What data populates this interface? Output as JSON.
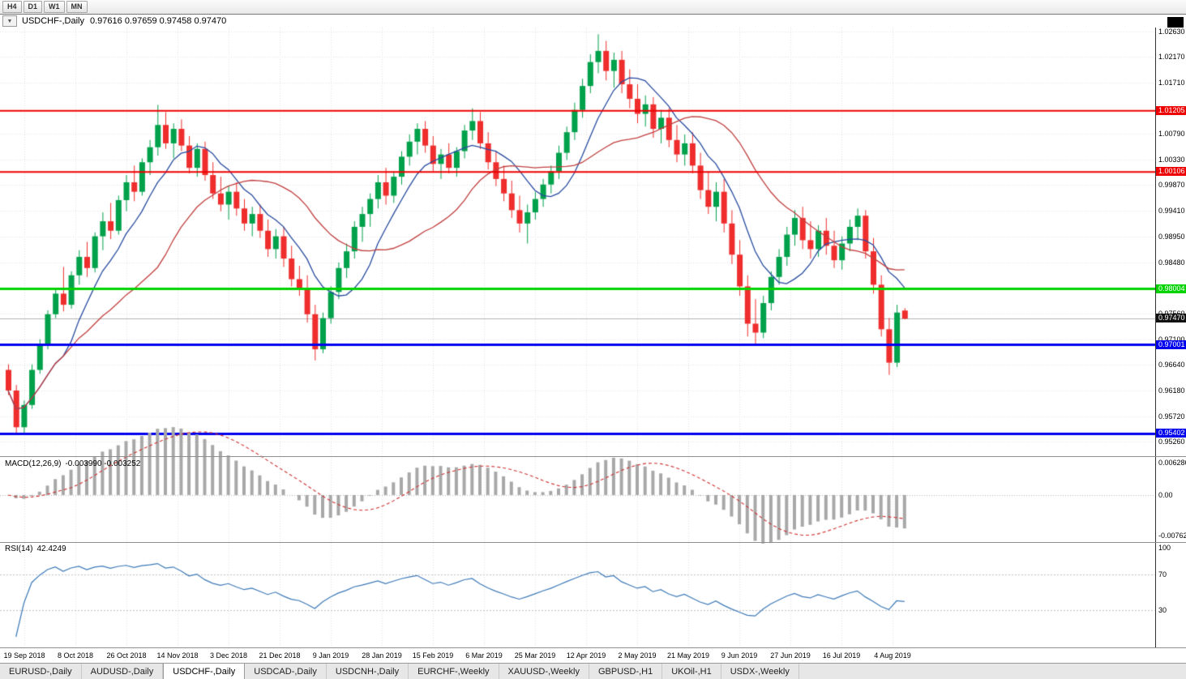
{
  "toolbar": {
    "periods": [
      "H4",
      "D1",
      "W1",
      "MN"
    ]
  },
  "header": {
    "symbol": "USDCHF-,Daily",
    "ohlc": "0.97616 0.97659 0.97458 0.97470"
  },
  "chart_data": {
    "type": "candlestick",
    "symbol": "USDCHF",
    "period": "Daily",
    "ylim": [
      0.95,
      1.027
    ],
    "price_axis_ticks": [
      1.0263,
      1.0217,
      1.0171,
      1.0079,
      1.0033,
      0.9987,
      0.9941,
      0.9895,
      0.9848,
      0.9756,
      0.971,
      0.9664,
      0.9618,
      0.9572,
      0.9526
    ],
    "levels": [
      {
        "name": "resistance-1",
        "price": 1.01205,
        "color": "#ee0000",
        "width": 2
      },
      {
        "name": "resistance-2",
        "price": 1.00106,
        "color": "#ee0000",
        "width": 2
      },
      {
        "name": "pivot-green",
        "price": 0.98004,
        "color": "#00d300",
        "width": 3
      },
      {
        "name": "support-1",
        "price": 0.97001,
        "color": "#0000ee",
        "width": 3
      },
      {
        "name": "support-2",
        "price": 0.95402,
        "color": "#0000ee",
        "width": 3
      }
    ],
    "current_price": 0.9747,
    "date_ticks": [
      "19 Sep 2018",
      "8 Oct 2018",
      "26 Oct 2018",
      "14 Nov 2018",
      "3 Dec 2018",
      "21 Dec 2018",
      "9 Jan 2019",
      "28 Jan 2019",
      "15 Feb 2019",
      "6 Mar 2019",
      "25 Mar 2019",
      "12 Apr 2019",
      "2 May 2019",
      "21 May 2019",
      "9 Jun 2019",
      "27 Jun 2019",
      "16 Jul 2019",
      "4 Aug 2019"
    ],
    "candles": [
      [
        0.9655,
        0.9665,
        0.961,
        0.9618
      ],
      [
        0.9618,
        0.9628,
        0.954,
        0.9552
      ],
      [
        0.9552,
        0.96,
        0.9541,
        0.9592
      ],
      [
        0.9592,
        0.9665,
        0.9585,
        0.9655
      ],
      [
        0.9655,
        0.971,
        0.9648,
        0.97
      ],
      [
        0.97,
        0.9762,
        0.9692,
        0.9755
      ],
      [
        0.9755,
        0.98,
        0.9748,
        0.9792
      ],
      [
        0.9792,
        0.984,
        0.976,
        0.9772
      ],
      [
        0.9772,
        0.9832,
        0.9765,
        0.9825
      ],
      [
        0.9825,
        0.987,
        0.9808,
        0.9858
      ],
      [
        0.9858,
        0.9885,
        0.9822,
        0.9838
      ],
      [
        0.9838,
        0.9902,
        0.983,
        0.9895
      ],
      [
        0.9895,
        0.9938,
        0.987,
        0.9922
      ],
      [
        0.9922,
        0.9955,
        0.989,
        0.9905
      ],
      [
        0.9905,
        0.9968,
        0.9898,
        0.996
      ],
      [
        0.996,
        1.0005,
        0.994,
        0.9992
      ],
      [
        0.9992,
        1.0022,
        0.9958,
        0.9975
      ],
      [
        0.9975,
        1.0035,
        0.9968,
        1.0028
      ],
      [
        1.0028,
        1.0068,
        1.0005,
        1.0055
      ],
      [
        1.0055,
        1.0131,
        1.004,
        1.0095
      ],
      [
        1.0095,
        1.0118,
        1.0052,
        1.0062
      ],
      [
        1.0062,
        1.0098,
        1.0035,
        1.0088
      ],
      [
        1.0088,
        1.0105,
        1.0048,
        1.0058
      ],
      [
        1.0058,
        1.0075,
        1.0008,
        1.0018
      ],
      [
        1.0018,
        1.0062,
        1.0002,
        1.0052
      ],
      [
        1.0052,
        1.0065,
        0.9995,
        1.0005
      ],
      [
        1.0005,
        1.0028,
        0.9962,
        0.9972
      ],
      [
        0.9972,
        1.0002,
        0.994,
        0.9952
      ],
      [
        0.9952,
        0.9985,
        0.9925,
        0.9975
      ],
      [
        0.9975,
        0.9992,
        0.9932,
        0.9945
      ],
      [
        0.9945,
        0.9962,
        0.9905,
        0.9918
      ],
      [
        0.9918,
        0.9948,
        0.9895,
        0.9935
      ],
      [
        0.9935,
        0.9952,
        0.9892,
        0.9905
      ],
      [
        0.9905,
        0.9925,
        0.9858,
        0.9872
      ],
      [
        0.9872,
        0.9908,
        0.9855,
        0.9895
      ],
      [
        0.9895,
        0.9912,
        0.984,
        0.9855
      ],
      [
        0.9855,
        0.9878,
        0.9805,
        0.9818
      ],
      [
        0.9818,
        0.9842,
        0.9788,
        0.9802
      ],
      [
        0.9802,
        0.9825,
        0.974,
        0.9755
      ],
      [
        0.9755,
        0.9772,
        0.9672,
        0.9692
      ],
      [
        0.9692,
        0.9758,
        0.9685,
        0.9748
      ],
      [
        0.9748,
        0.9805,
        0.9738,
        0.9795
      ],
      [
        0.9795,
        0.9848,
        0.9782,
        0.9838
      ],
      [
        0.9838,
        0.9882,
        0.982,
        0.9868
      ],
      [
        0.9868,
        0.9922,
        0.9855,
        0.9912
      ],
      [
        0.9912,
        0.9948,
        0.9885,
        0.9935
      ],
      [
        0.9935,
        0.9972,
        0.9912,
        0.9962
      ],
      [
        0.9962,
        1.0005,
        0.9945,
        0.9992
      ],
      [
        0.9992,
        1.0018,
        0.9952,
        0.9968
      ],
      [
        0.9968,
        1.0012,
        0.9955,
        1.0002
      ],
      [
        1.0002,
        1.0048,
        0.9988,
        1.0038
      ],
      [
        1.0038,
        1.0078,
        1.0022,
        1.0065
      ],
      [
        1.0065,
        1.0098,
        1.0042,
        1.0088
      ],
      [
        1.0088,
        1.0102,
        1.0045,
        1.0058
      ],
      [
        1.0058,
        1.0075,
        1.0012,
        1.0025
      ],
      [
        1.0025,
        1.0052,
        0.9998,
        1.0042
      ],
      [
        1.0042,
        1.0062,
        1.0008,
        1.0018
      ],
      [
        1.0018,
        1.0055,
        1.0002,
        1.0048
      ],
      [
        1.0048,
        1.0095,
        1.0035,
        1.0085
      ],
      [
        1.0085,
        1.0125,
        1.0068,
        1.0102
      ],
      [
        1.0102,
        1.0118,
        1.0052,
        1.0062
      ],
      [
        1.0062,
        1.0082,
        1.0015,
        1.0028
      ],
      [
        1.0028,
        1.0048,
        0.9985,
        0.9998
      ],
      [
        0.9998,
        1.0022,
        0.9958,
        0.9972
      ],
      [
        0.9972,
        0.9995,
        0.9928,
        0.9942
      ],
      [
        0.9942,
        0.9968,
        0.9902,
        0.9918
      ],
      [
        0.9918,
        0.9952,
        0.9882,
        0.9938
      ],
      [
        0.9938,
        0.9975,
        0.9925,
        0.9962
      ],
      [
        0.9962,
        0.9998,
        0.9948,
        0.9988
      ],
      [
        0.9988,
        1.0022,
        0.9972,
        1.0012
      ],
      [
        1.0012,
        1.0058,
        0.9998,
        1.0045
      ],
      [
        1.0045,
        1.0092,
        1.0032,
        1.0082
      ],
      [
        1.0082,
        1.0135,
        1.0068,
        1.0122
      ],
      [
        1.0122,
        1.0178,
        1.0108,
        1.0165
      ],
      [
        1.0165,
        1.0222,
        1.0152,
        1.0208
      ],
      [
        1.0208,
        1.0258,
        1.0188,
        1.0228
      ],
      [
        1.0228,
        1.0246,
        1.0175,
        1.0192
      ],
      [
        1.0192,
        1.0225,
        1.0162,
        1.0212
      ],
      [
        1.0212,
        1.0228,
        1.0152,
        1.0168
      ],
      [
        1.0168,
        1.0195,
        1.0125,
        1.0142
      ],
      [
        1.0142,
        1.0168,
        1.0098,
        1.0115
      ],
      [
        1.0115,
        1.0148,
        1.0092,
        1.0132
      ],
      [
        1.0132,
        1.0145,
        1.0072,
        1.0088
      ],
      [
        1.0088,
        1.0122,
        1.0062,
        1.0108
      ],
      [
        1.0108,
        1.0125,
        1.0055,
        1.0068
      ],
      [
        1.0068,
        1.0095,
        1.0028,
        1.0042
      ],
      [
        1.0042,
        1.0078,
        1.0022,
        1.0062
      ],
      [
        1.0062,
        1.0082,
        1.0008,
        1.0022
      ],
      [
        1.0022,
        1.0045,
        0.9962,
        0.9978
      ],
      [
        0.9978,
        1.0012,
        0.9935,
        0.9948
      ],
      [
        0.9948,
        0.9992,
        0.9922,
        0.9975
      ],
      [
        0.9975,
        0.9998,
        0.9902,
        0.9918
      ],
      [
        0.9918,
        0.9942,
        0.9845,
        0.9862
      ],
      [
        0.9862,
        0.9888,
        0.9788,
        0.9805
      ],
      [
        0.9805,
        0.9825,
        0.9715,
        0.9738
      ],
      [
        0.9738,
        0.9782,
        0.9702,
        0.9722
      ],
      [
        0.9722,
        0.9788,
        0.9712,
        0.9775
      ],
      [
        0.9775,
        0.9832,
        0.9762,
        0.9822
      ],
      [
        0.9822,
        0.9872,
        0.9808,
        0.9858
      ],
      [
        0.9858,
        0.9912,
        0.9842,
        0.9898
      ],
      [
        0.9898,
        0.9942,
        0.9878,
        0.9928
      ],
      [
        0.9928,
        0.9948,
        0.9872,
        0.9888
      ],
      [
        0.9888,
        0.9922,
        0.9855,
        0.9872
      ],
      [
        0.9872,
        0.9915,
        0.9858,
        0.9905
      ],
      [
        0.9905,
        0.9928,
        0.9862,
        0.9878
      ],
      [
        0.9878,
        0.9905,
        0.9838,
        0.9852
      ],
      [
        0.9852,
        0.9895,
        0.9835,
        0.9882
      ],
      [
        0.9882,
        0.9925,
        0.9868,
        0.9912
      ],
      [
        0.9912,
        0.9945,
        0.9888,
        0.9932
      ],
      [
        0.9932,
        0.9942,
        0.9855,
        0.9868
      ],
      [
        0.9868,
        0.9892,
        0.9792,
        0.9808
      ],
      [
        0.9808,
        0.9825,
        0.9715,
        0.9728
      ],
      [
        0.9728,
        0.9748,
        0.9646,
        0.9668
      ],
      [
        0.9668,
        0.9772,
        0.966,
        0.9758
      ],
      [
        0.97616,
        0.97659,
        0.97458,
        0.9747
      ]
    ],
    "moving_averages": [
      {
        "name": "ma-fast",
        "period": 8,
        "color": "#274b9f"
      },
      {
        "name": "ma-slow",
        "period": 20,
        "color": "#c23f3f"
      }
    ],
    "indicators": {
      "macd": {
        "label": "MACD(12,26,9)",
        "values": "-0.003990 -0.003252",
        "fast": 12,
        "slow": 26,
        "signal": 9,
        "axis_max": 0.006286,
        "axis_min": -0.00762,
        "axis_labels": [
          "0.006286",
          "0.00",
          "-0.00762"
        ],
        "histogram_color": "#a8a8a8",
        "signal_color": "#d03030"
      },
      "rsi": {
        "label": "RSI(14)",
        "value": "42.4249",
        "period": 14,
        "axis": [
          100,
          70,
          30
        ],
        "levels": [
          70,
          30
        ],
        "line_color": "#3d7ab8"
      }
    },
    "colors": {
      "up": "#00a14b",
      "down": "#ef2d2d",
      "grid": "#e4e4e4",
      "current_line": "#b4b4b4"
    }
  },
  "tabs": {
    "active_index": 2,
    "items": [
      "EURUSD-,Daily",
      "AUDUSD-,Daily",
      "USDCHF-,Daily",
      "USDCAD-,Daily",
      "USDCNH-,Daily",
      "EURCHF-,Weekly",
      "XAUUSD-,Weekly",
      "GBPUSD-,H1",
      "UKOil-,H1",
      "USDX-,Weekly"
    ]
  }
}
